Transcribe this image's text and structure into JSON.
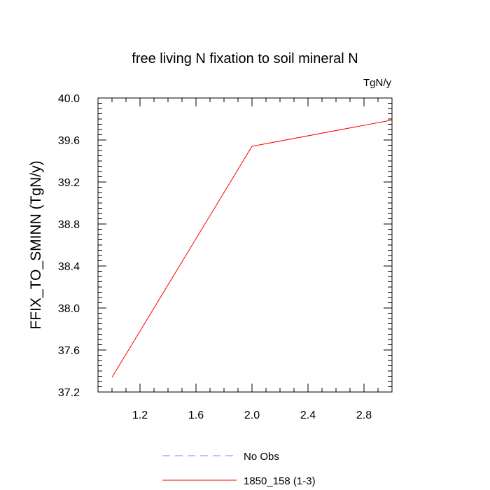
{
  "chart_data": {
    "type": "line",
    "title": "free living N fixation to soil mineral N",
    "units_label": "TgN/y",
    "xlabel": "",
    "ylabel": "FFIX_TO_SMINN  (TgN/y)",
    "xlim": [
      0.9,
      3.0
    ],
    "ylim": [
      37.2,
      40.0
    ],
    "x_ticks": [
      1.2,
      1.6,
      2.0,
      2.4,
      2.8
    ],
    "x_tick_labels": [
      "1.2",
      "1.6",
      "2.0",
      "2.4",
      "2.8"
    ],
    "y_ticks": [
      37.2,
      37.6,
      38.0,
      38.4,
      38.8,
      39.2,
      39.6,
      40.0
    ],
    "y_tick_labels": [
      "37.2",
      "37.6",
      "38.0",
      "38.4",
      "38.8",
      "39.2",
      "39.6",
      "40.0"
    ],
    "series": [
      {
        "name": "1850_158 (1-3)",
        "color": "#ff0000",
        "dash": "solid",
        "x": [
          1.0,
          2.0,
          3.0
        ],
        "values": [
          37.34,
          39.54,
          39.79
        ]
      }
    ],
    "legend": {
      "placement": "bottom-center",
      "entries": [
        {
          "label": "No Obs",
          "color": "#8080ff",
          "dash": "dashed"
        },
        {
          "label": "1850_158 (1-3)",
          "color": "#ff0000",
          "dash": "solid"
        }
      ]
    }
  }
}
